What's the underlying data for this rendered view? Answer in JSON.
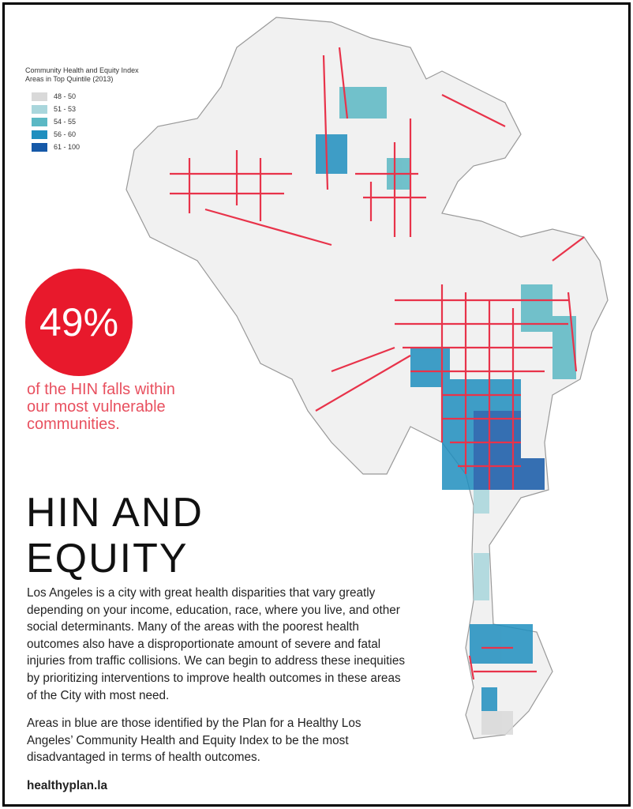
{
  "legend": {
    "title": [
      "Community Health and Equity Index",
      "Areas in Top Quintile (2013)"
    ],
    "items": [
      {
        "label": "48 - 50",
        "color": "#d9d9d9"
      },
      {
        "label": "51 - 53",
        "color": "#a9d6dc"
      },
      {
        "label": "54 - 55",
        "color": "#5bb8c4"
      },
      {
        "label": "56 - 60",
        "color": "#1f8fbf"
      },
      {
        "label": "61 - 100",
        "color": "#1559a8"
      }
    ]
  },
  "stat": {
    "value": "49%",
    "caption": [
      "of the HIN falls within",
      "our most vulnerable",
      "communities."
    ]
  },
  "heading": [
    "HIN AND",
    "EQUITY"
  ],
  "paragraphs": [
    "Los Angeles is a city with great health disparities that vary greatly depending on your income, education, race, where you live, and other social determinants. Many of the areas with the poorest health outcomes also have a disproportionate amount of severe and fatal injuries from traffic collisions. We can begin to address these inequities by prioritizing interventions to improve health outcomes in these areas of the City with most need.",
    "Areas in blue are those identified by the Plan for a Healthy Los Angeles’ Community Health and Equity Index to be the most disadvantaged in terms of health outcomes."
  ],
  "link": "healthyplan.la"
}
